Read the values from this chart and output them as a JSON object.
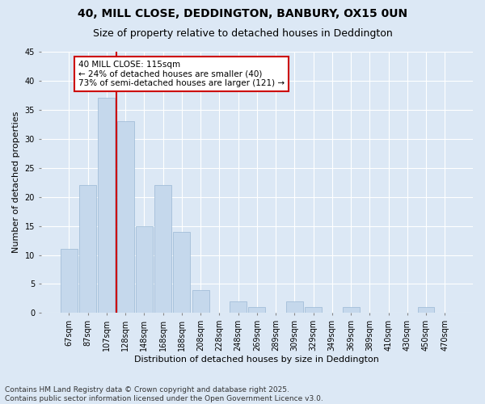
{
  "title_line1": "40, MILL CLOSE, DEDDINGTON, BANBURY, OX15 0UN",
  "title_line2": "Size of property relative to detached houses in Deddington",
  "xlabel": "Distribution of detached houses by size in Deddington",
  "ylabel": "Number of detached properties",
  "categories": [
    "67sqm",
    "87sqm",
    "107sqm",
    "128sqm",
    "148sqm",
    "168sqm",
    "188sqm",
    "208sqm",
    "228sqm",
    "248sqm",
    "269sqm",
    "289sqm",
    "309sqm",
    "329sqm",
    "349sqm",
    "369sqm",
    "389sqm",
    "410sqm",
    "430sqm",
    "450sqm",
    "470sqm"
  ],
  "values": [
    11,
    22,
    37,
    33,
    15,
    22,
    14,
    4,
    0,
    2,
    1,
    0,
    2,
    1,
    0,
    1,
    0,
    0,
    0,
    1,
    0
  ],
  "bar_color": "#c5d8ec",
  "bar_edge_color": "#9ab8d4",
  "vline_x": 2.5,
  "vline_color": "#cc0000",
  "annotation_text": "40 MILL CLOSE: 115sqm\n← 24% of detached houses are smaller (40)\n73% of semi-detached houses are larger (121) →",
  "annotation_box_facecolor": "#ffffff",
  "annotation_box_edge": "#cc0000",
  "ylim": [
    0,
    45
  ],
  "yticks": [
    0,
    5,
    10,
    15,
    20,
    25,
    30,
    35,
    40,
    45
  ],
  "background_color": "#dce8f5",
  "plot_bg_color": "#dce8f5",
  "grid_color": "#ffffff",
  "footer_line1": "Contains HM Land Registry data © Crown copyright and database right 2025.",
  "footer_line2": "Contains public sector information licensed under the Open Government Licence v3.0.",
  "title_fontsize": 10,
  "subtitle_fontsize": 9,
  "axis_label_fontsize": 8,
  "tick_fontsize": 7,
  "annotation_fontsize": 7.5,
  "footer_fontsize": 6.5
}
